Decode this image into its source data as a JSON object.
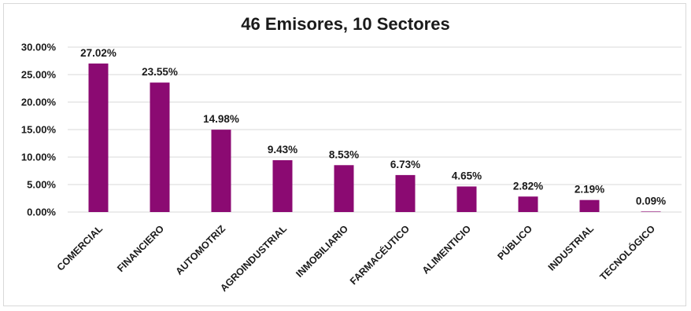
{
  "chart_data": {
    "type": "bar",
    "title": "46 Emisores, 10 Sectores",
    "categories": [
      "COMERCIAL",
      "FINANCIERO",
      "AUTOMOTRIZ",
      "AGROINDUSTRIAL",
      "INMOBILIARIO",
      "FARMACÉUTICO",
      "ALIMENTICIO",
      "PÚBLICO",
      "INDUSTRIAL",
      "TECNOLÓGICO"
    ],
    "values": [
      27.02,
      23.55,
      14.98,
      9.43,
      8.53,
      6.73,
      4.65,
      2.82,
      2.19,
      0.09
    ],
    "data_labels": [
      "27.02%",
      "23.55%",
      "14.98%",
      "9.43%",
      "8.53%",
      "6.73%",
      "4.65%",
      "2.82%",
      "2.19%",
      "0.09%"
    ],
    "y_ticks": [
      "0.00%",
      "5.00%",
      "10.00%",
      "15.00%",
      "20.00%",
      "25.00%",
      "30.00%"
    ],
    "ylim": [
      0,
      30
    ],
    "grid": true,
    "legend": "none",
    "colors": {
      "bar": "#8b0a72",
      "grid": "#d9d9d9",
      "text": "#1a1a1a"
    }
  }
}
